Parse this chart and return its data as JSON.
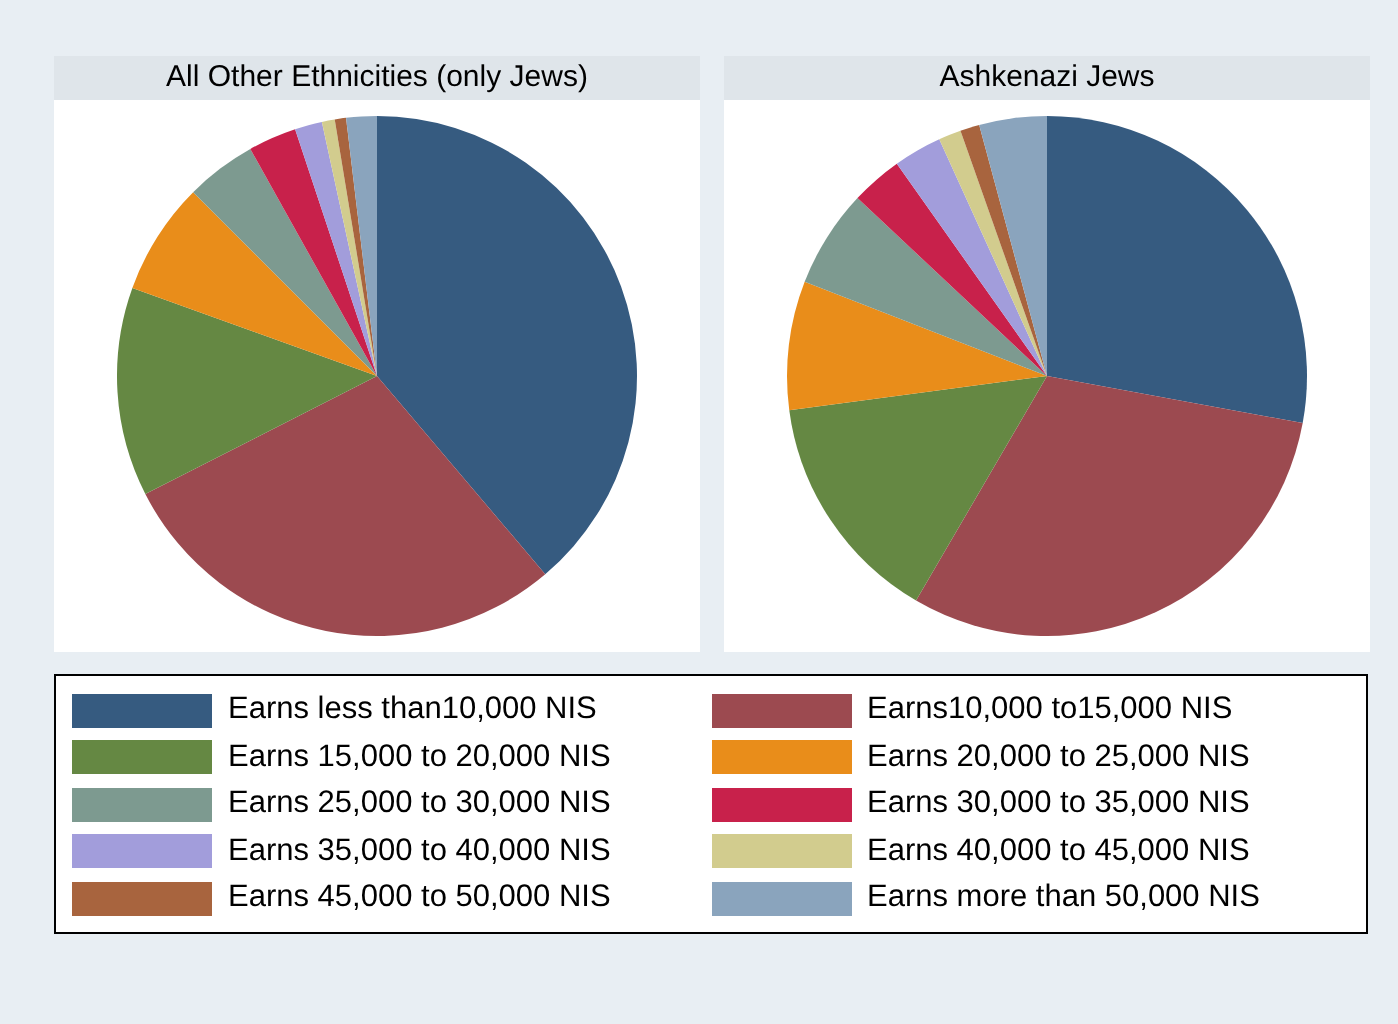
{
  "chart_data": [
    {
      "type": "pie",
      "title": "All Other Ethnicities (only Jews)",
      "legend": "bottom",
      "categories": [
        "Earns less than10,000 NIS",
        "Earns10,000 to15,000 NIS",
        "Earns 15,000 to 20,000 NIS",
        "Earns 20,000 to 25,000 NIS",
        "Earns 25,000 to 30,000 NIS",
        "Earns 30,000 to 35,000 NIS",
        "Earns 35,000 to 40,000 NIS",
        "Earns 40,000 to 45,000 NIS",
        "Earns 45,000 to 50,000 NIS",
        "Earns more than 50,000 NIS"
      ],
      "values": [
        38.8,
        28.7,
        13.0,
        7.0,
        4.4,
        3.0,
        1.7,
        0.8,
        0.7,
        1.9
      ],
      "colors": [
        "#365b80",
        "#9c4a50",
        "#658843",
        "#e98d1a",
        "#7d9a90",
        "#c8214b",
        "#a29ddb",
        "#d2cc8e",
        "#a8643e",
        "#8aa4bd"
      ]
    },
    {
      "type": "pie",
      "title": "Ashkenazi Jews",
      "categories": [
        null,
        null,
        null,
        null,
        null,
        null,
        null,
        null,
        null,
        null
      ],
      "values": [
        27.9,
        30.5,
        14.5,
        8.0,
        6.1,
        3.2,
        3.0,
        1.4,
        1.2,
        4.2
      ],
      "colors": [
        "#365b80",
        "#9c4a50",
        "#658843",
        "#e98d1a",
        "#7d9a90",
        "#c8214b",
        "#a29ddb",
        "#d2cc8e",
        "#a8643e",
        "#8aa4bd"
      ]
    }
  ]
}
